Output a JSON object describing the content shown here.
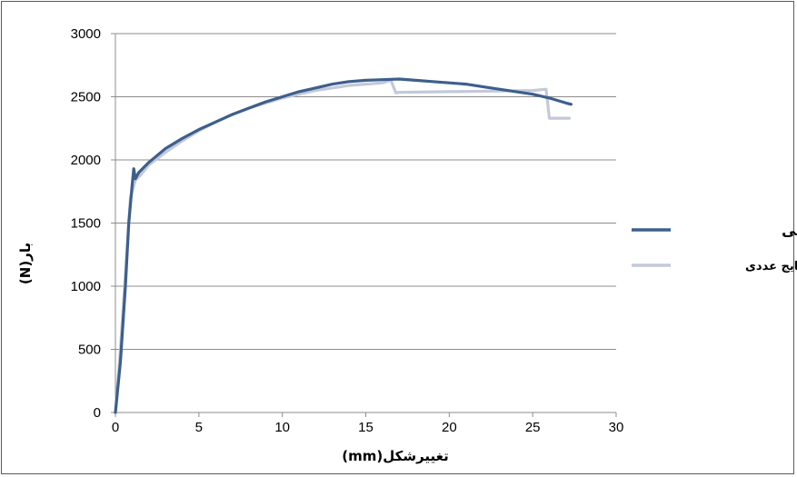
{
  "chart_data": {
    "type": "line",
    "title": "",
    "xlabel": "تغییرشکل(mm)",
    "ylabel": "بار(N)",
    "xlim": [
      0,
      30
    ],
    "ylim": [
      0,
      3000
    ],
    "x_ticks": [
      "0",
      "5",
      "10",
      "15",
      "20",
      "25",
      "30"
    ],
    "y_ticks": [
      "0",
      "500",
      "1000",
      "1500",
      "2000",
      "2500",
      "3000"
    ],
    "grid": "horizontal",
    "legend_position": "right",
    "series": [
      {
        "name": "نتایج آزمایشگاهی",
        "color": "#3d5f8c",
        "points": [
          [
            0,
            0
          ],
          [
            0.3,
            400
          ],
          [
            0.6,
            1000
          ],
          [
            0.8,
            1500
          ],
          [
            1.0,
            1800
          ],
          [
            1.1,
            1930
          ],
          [
            1.2,
            1850
          ],
          [
            1.4,
            1900
          ],
          [
            2,
            1980
          ],
          [
            3,
            2090
          ],
          [
            4,
            2170
          ],
          [
            5,
            2240
          ],
          [
            6,
            2300
          ],
          [
            7,
            2360
          ],
          [
            8,
            2410
          ],
          [
            9,
            2460
          ],
          [
            10,
            2500
          ],
          [
            11,
            2540
          ],
          [
            12,
            2570
          ],
          [
            13,
            2600
          ],
          [
            14,
            2620
          ],
          [
            15,
            2630
          ],
          [
            16,
            2635
          ],
          [
            17,
            2640
          ],
          [
            18,
            2630
          ],
          [
            19,
            2620
          ],
          [
            20,
            2610
          ],
          [
            21,
            2600
          ],
          [
            22,
            2580
          ],
          [
            23,
            2560
          ],
          [
            24,
            2540
          ],
          [
            25,
            2520
          ],
          [
            26,
            2490
          ],
          [
            27,
            2450
          ],
          [
            27.3,
            2440
          ]
        ]
      },
      {
        "name": "نتایج عددی",
        "color": "#c3c9da",
        "points": [
          [
            0,
            0
          ],
          [
            0.3,
            500
          ],
          [
            0.6,
            1100
          ],
          [
            0.9,
            1700
          ],
          [
            1.2,
            1840
          ],
          [
            1.5,
            1880
          ],
          [
            2,
            1960
          ],
          [
            3,
            2060
          ],
          [
            4,
            2150
          ],
          [
            5,
            2230
          ],
          [
            6,
            2300
          ],
          [
            7,
            2360
          ],
          [
            8,
            2410
          ],
          [
            9,
            2450
          ],
          [
            10,
            2490
          ],
          [
            11,
            2520
          ],
          [
            12,
            2550
          ],
          [
            13,
            2570
          ],
          [
            14,
            2590
          ],
          [
            15,
            2600
          ],
          [
            16,
            2610
          ],
          [
            16.5,
            2630
          ],
          [
            16.8,
            2530
          ],
          [
            17,
            2535
          ],
          [
            20,
            2540
          ],
          [
            23,
            2545
          ],
          [
            25,
            2550
          ],
          [
            25.8,
            2560
          ],
          [
            26,
            2330
          ],
          [
            27.2,
            2330
          ]
        ]
      }
    ]
  }
}
